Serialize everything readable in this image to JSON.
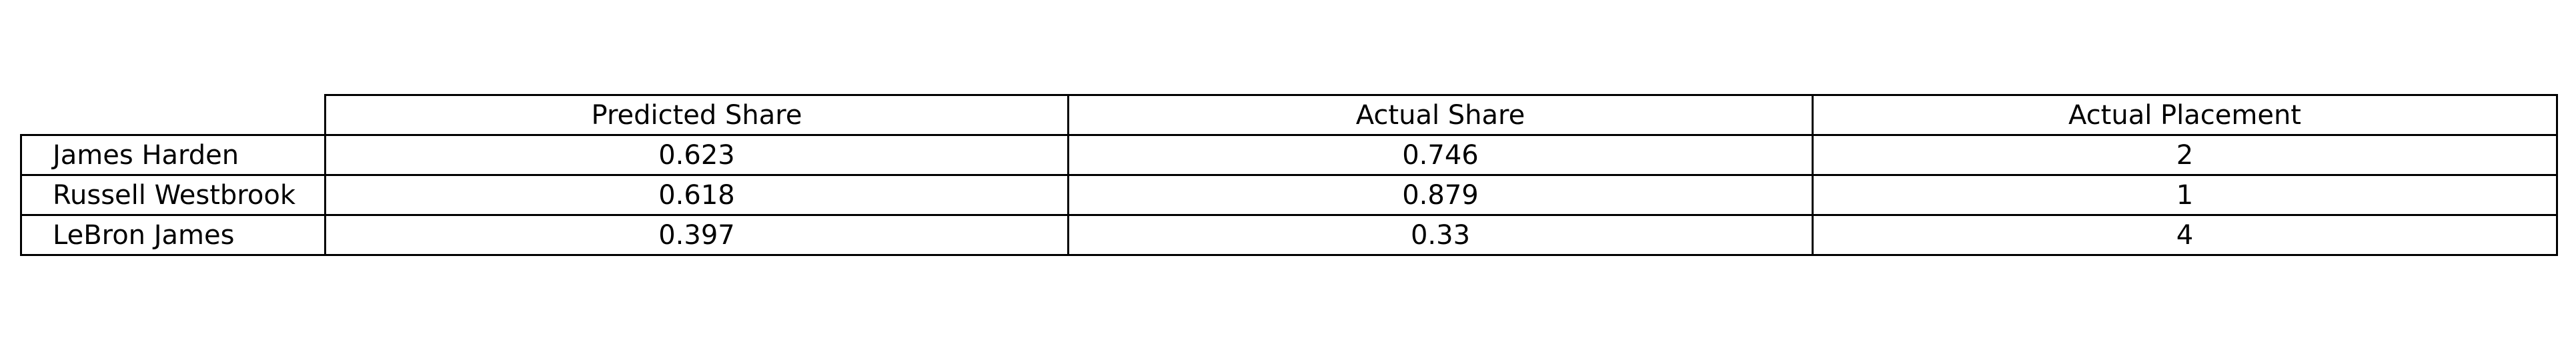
{
  "chart_data": {
    "type": "table",
    "columns": [
      "Predicted Share",
      "Actual Share",
      "Actual Placement"
    ],
    "rows": [
      {
        "label": "James Harden",
        "values": [
          "0.623",
          "0.746",
          "2"
        ]
      },
      {
        "label": "Russell Westbrook",
        "values": [
          "0.618",
          "0.879",
          "1"
        ]
      },
      {
        "label": "LeBron James",
        "values": [
          "0.397",
          "0.33",
          "4"
        ]
      }
    ],
    "border_color": "#000000",
    "background_color": "#ffffff"
  }
}
